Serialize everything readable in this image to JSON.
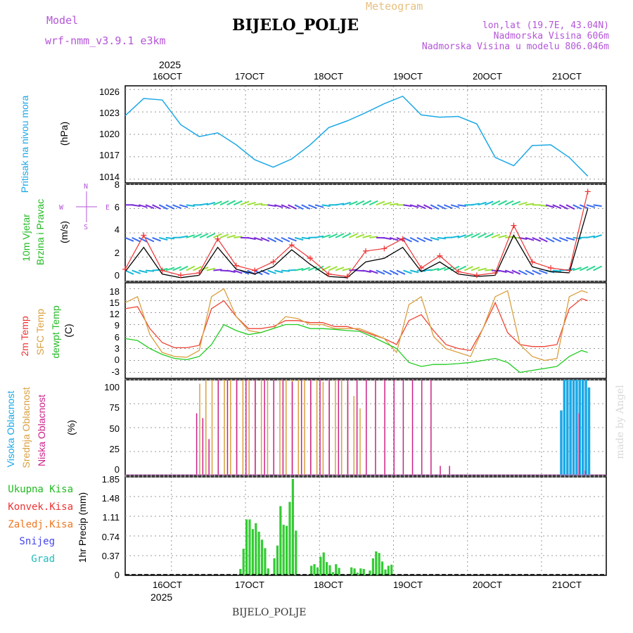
{
  "header": {
    "model_label": "Model",
    "model_name": "wrf-nmm_v3.9.1  e3km",
    "app_title": "Meteogram",
    "station": "BIJELO_POLJE",
    "coords": "lon,lat (19.7E, 43.04N)",
    "elevation": "Nadmorska Visina 606m",
    "model_elevation": "Nadmorska Visina u modelu 806.046m",
    "year_top": "2025",
    "year_bottom": "2025",
    "footer_station": "BIJELO_POLJE",
    "watermark": "made by Angel"
  },
  "colors": {
    "pressure": "#1ca8e6",
    "wind_speed": "#000000",
    "gust": "#ee3333",
    "temp2m": "#ee4433",
    "sfc_temp": "#d9a040",
    "dewpt": "#22cc22",
    "high_cloud": "#1ca8e6",
    "mid_cloud": "#d9a040",
    "low_cloud": "#cc2288",
    "precip": "#33cc33",
    "label_magenta": "#b455d8",
    "label_orange": "#e8c080",
    "label_green": "#22bb22",
    "label_red": "#ee3333",
    "label_orange2": "#ee7722",
    "label_blue": "#4444ee",
    "label_cyan": "#22bbbb"
  },
  "panel_labels": {
    "pressure": [
      "Pritisak na nivou mora"
    ],
    "pressure_unit": "(hPa)",
    "wind": [
      "10m Vjetar",
      "Brzina i Pravac"
    ],
    "wind_unit": "(m/s)",
    "compass_w": "W",
    "compass_e": "E",
    "compass_n": "N",
    "compass_s": "S",
    "temp": [
      "2m Temp",
      "SFC Temp",
      "dewpt Temp"
    ],
    "temp_unit": "(C)",
    "cloud": [
      "Visoka Oblacnost",
      "Srednja Oblacnost",
      "Niska Oblacnost"
    ],
    "cloud_unit": "(%)",
    "precip_legend": [
      "Ukupna Kisa",
      "Konvek.Kisa",
      "Zaledj.Kisa",
      "Snijeg",
      "Grad"
    ],
    "precip_unit": "1hr Precip (mm)"
  },
  "chart_data": [
    {
      "type": "line",
      "title": "Pritisak na nivou mora",
      "ylabel": "(hPa)",
      "x_ticks": [
        "16OCT",
        "17OCT",
        "18OCT",
        "19OCT",
        "20OCT",
        "21OCT"
      ],
      "y_ticks": [
        "1026",
        "1023",
        "1020",
        "1017",
        "1014"
      ],
      "ylim": [
        1013.5,
        1026.5
      ],
      "x_hours": [
        0,
        6,
        12,
        18,
        24,
        30,
        36,
        42,
        48,
        54,
        60,
        66,
        72,
        78,
        84,
        90,
        96,
        102,
        108,
        114,
        120,
        126,
        132,
        138,
        144,
        150
      ],
      "series": [
        {
          "name": "pressure",
          "values": [
            1022.5,
            1024.8,
            1024.6,
            1021.3,
            1019.7,
            1020.2,
            1018.6,
            1016.6,
            1015.6,
            1016.7,
            1018.6,
            1020.9,
            1021.8,
            1022.9,
            1024.1,
            1025.1,
            1022.6,
            1022.3,
            1022.4,
            1021.4,
            1016.9,
            1015.8,
            1018.5,
            1018.6,
            1016.9,
            1014.4
          ]
        }
      ]
    },
    {
      "type": "line",
      "title": "10m Vjetar Brzina i Pravac",
      "ylabel": "(m/s)",
      "y_ticks": [
        "8",
        "6",
        "4",
        "2",
        "0"
      ],
      "ylim": [
        0,
        8
      ],
      "x_hours": [
        0,
        6,
        12,
        18,
        24,
        30,
        36,
        42,
        48,
        54,
        60,
        66,
        72,
        78,
        84,
        90,
        96,
        102,
        108,
        114,
        120,
        126,
        132,
        138,
        144,
        150
      ],
      "series": [
        {
          "name": "speed",
          "values": [
            0.8,
            2.8,
            0.6,
            0.3,
            0.5,
            2.8,
            1.0,
            0.6,
            1.2,
            2.6,
            1.4,
            0.4,
            0.3,
            1.6,
            1.9,
            2.8,
            0.8,
            1.6,
            0.6,
            0.4,
            0.5,
            3.8,
            1.2,
            0.8,
            0.7,
            6.0
          ]
        },
        {
          "name": "gust",
          "values": [
            1.0,
            3.8,
            0.9,
            0.5,
            0.7,
            3.5,
            1.3,
            0.9,
            1.6,
            3.0,
            1.9,
            0.6,
            0.4,
            2.5,
            2.7,
            3.5,
            1.1,
            2.1,
            0.8,
            0.5,
            0.7,
            4.6,
            1.6,
            1.1,
            0.9,
            7.4
          ]
        }
      ]
    },
    {
      "type": "line",
      "title": "2m Temp / SFC Temp / dewpt Temp",
      "ylabel": "(C)",
      "y_ticks": [
        "18",
        "15",
        "12",
        "9",
        "6",
        "3",
        "0",
        "-3"
      ],
      "ylim": [
        -4.5,
        19.5
      ],
      "x_hours": [
        0,
        4,
        8,
        12,
        16,
        20,
        24,
        28,
        32,
        36,
        40,
        44,
        48,
        52,
        56,
        60,
        64,
        68,
        72,
        76,
        80,
        84,
        88,
        92,
        96,
        100,
        104,
        108,
        112,
        116,
        120,
        124,
        128,
        132,
        136,
        140,
        144,
        148,
        150
      ],
      "series": [
        {
          "name": "2m Temp",
          "values": [
            13,
            13.5,
            8,
            4.5,
            3.2,
            3.2,
            3.8,
            13,
            15,
            11,
            8,
            8,
            8.5,
            10,
            10,
            9.5,
            9.5,
            8.5,
            8.5,
            7.6,
            6.5,
            5.5,
            4,
            10,
            11.5,
            7.5,
            4,
            3,
            2.5,
            8,
            14.5,
            7,
            4,
            3.5,
            3.5,
            4,
            13,
            15.5,
            15
          ]
        },
        {
          "name": "SFC Temp",
          "values": [
            14.5,
            16,
            6.5,
            2,
            1,
            0.8,
            2.5,
            16,
            18,
            11,
            7.5,
            7,
            8,
            11,
            10.5,
            9,
            9,
            8,
            8,
            8,
            6.8,
            5.5,
            2,
            14,
            16,
            6,
            3,
            2,
            1,
            8,
            16,
            17.5,
            4,
            1,
            0,
            0.5,
            16,
            17.5,
            17
          ]
        },
        {
          "name": "dewpt Temp",
          "values": [
            5.5,
            5,
            3,
            1.5,
            0.5,
            0.2,
            1,
            4,
            9,
            7.5,
            6.5,
            7,
            8,
            9,
            9,
            8,
            8,
            7.8,
            7.5,
            7.3,
            6,
            4.5,
            3,
            -0.5,
            -1.5,
            -1,
            -1,
            -0.8,
            -0.5,
            0,
            0.5,
            -0.5,
            -3,
            -2.5,
            -2,
            -1.5,
            1,
            2.5,
            2
          ]
        }
      ]
    },
    {
      "type": "bar",
      "title": "Visoka / Srednja / Niska Oblacnost",
      "ylabel": "(%)",
      "y_ticks": [
        "100",
        "75",
        "50",
        "25",
        "0"
      ],
      "ylim": [
        0,
        100
      ],
      "series": [
        {
          "name": "Visoka Oblacnost",
          "hours": [
            141,
            142,
            143,
            144,
            145,
            146,
            147,
            148,
            149,
            150
          ],
          "values": [
            68,
            100,
            100,
            100,
            100,
            100,
            100,
            100,
            100,
            92
          ]
        },
        {
          "name": "Srednja Oblacnost",
          "hours": [
            24,
            26,
            28,
            30,
            32,
            34,
            36,
            38,
            40,
            42,
            44,
            46,
            48,
            50,
            52,
            54,
            56,
            58,
            60,
            62,
            64,
            66,
            68,
            70,
            72,
            74,
            76
          ],
          "values": [
            96,
            100,
            100,
            100,
            100,
            100,
            100,
            100,
            100,
            100,
            100,
            100,
            100,
            100,
            100,
            100,
            100,
            100,
            100,
            100,
            98,
            97,
            100,
            100,
            95,
            83,
            70
          ]
        },
        {
          "name": "Niska Oblacnost",
          "hours": [
            23,
            25,
            27,
            30,
            33,
            36,
            39,
            42,
            45,
            48,
            51,
            54,
            57,
            60,
            63,
            66,
            69,
            72,
            75,
            78,
            81,
            84,
            87,
            90,
            93,
            96,
            99,
            102,
            105,
            147,
            149
          ],
          "values": [
            65,
            60,
            38,
            100,
            100,
            100,
            100,
            100,
            100,
            100,
            100,
            98,
            100,
            100,
            100,
            100,
            100,
            100,
            100,
            100,
            100,
            100,
            100,
            100,
            100,
            100,
            100,
            10,
            10,
            65,
            5
          ]
        }
      ]
    },
    {
      "type": "bar",
      "title": "1hr Precip",
      "ylabel": "1hr Precip (mm)",
      "y_ticks": [
        "1.85",
        "1.48",
        "1.11",
        "0.74",
        "0.37",
        "0"
      ],
      "ylim": [
        0,
        1.85
      ],
      "x_ticks": [
        "16OCT",
        "17OCT",
        "18OCT",
        "19OCT",
        "20OCT",
        "21OCT"
      ],
      "hours": [
        37,
        38,
        39,
        40,
        41,
        42,
        43,
        44,
        45,
        46,
        47,
        48,
        49,
        50,
        51,
        52,
        53,
        54,
        55,
        56,
        57,
        58,
        59,
        60,
        61,
        62,
        63,
        64,
        65,
        66,
        67,
        68,
        69,
        70,
        71,
        72,
        73,
        74,
        75,
        76,
        77,
        78,
        79,
        80,
        81,
        82,
        83,
        84,
        85,
        86,
        87,
        88,
        89,
        90,
        91,
        92,
        93,
        94
      ],
      "values": [
        0.12,
        0.5,
        1.05,
        1.05,
        0.87,
        0.98,
        0.82,
        0.67,
        0.51,
        0.13,
        0.0,
        0.32,
        0.56,
        1.3,
        0.95,
        0.93,
        1.38,
        1.81,
        0.84,
        0.0,
        0.0,
        0.0,
        0.0,
        0.18,
        0.21,
        0.15,
        0.35,
        0.43,
        0.25,
        0.19,
        0.06,
        0.21,
        0.14,
        0.0,
        0.0,
        0.0,
        0.15,
        0.13,
        0.05,
        0.13,
        0.12,
        0.0,
        0.09,
        0.32,
        0.45,
        0.42,
        0.26,
        0.11,
        0.18,
        0.2,
        0.0,
        0.0,
        0.0,
        0.0,
        0.0,
        0.0,
        0.0,
        0.0
      ]
    }
  ]
}
